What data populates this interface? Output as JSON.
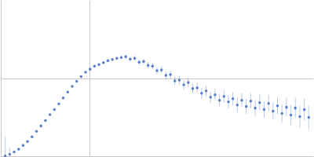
{
  "chart_data": {
    "type": "scatter",
    "color": "#3a66bd",
    "marker": "circle",
    "grid": true,
    "tick_labels": false,
    "xlim": [
      0,
      0.35
    ],
    "ylim": [
      0,
      2
    ],
    "xticks": [
      0.1
    ],
    "yticks": [
      1
    ],
    "x": [
      0.005,
      0.01,
      0.015,
      0.02,
      0.025,
      0.03,
      0.035,
      0.04,
      0.045,
      0.05,
      0.055,
      0.06,
      0.065,
      0.07,
      0.075,
      0.08,
      0.085,
      0.09,
      0.095,
      0.1,
      0.105,
      0.11,
      0.115,
      0.12,
      0.125,
      0.13,
      0.135,
      0.14,
      0.145,
      0.15,
      0.155,
      0.16,
      0.165,
      0.17,
      0.175,
      0.18,
      0.185,
      0.19,
      0.195,
      0.2,
      0.205,
      0.21,
      0.215,
      0.22,
      0.225,
      0.23,
      0.235,
      0.24,
      0.245,
      0.25,
      0.255,
      0.26,
      0.265,
      0.27,
      0.275,
      0.28,
      0.285,
      0.29,
      0.295,
      0.3,
      0.305,
      0.31,
      0.315,
      0.32,
      0.325,
      0.33,
      0.335,
      0.34,
      0.345
    ],
    "values": [
      0.005,
      0.025,
      0.055,
      0.09,
      0.14,
      0.19,
      0.25,
      0.32,
      0.39,
      0.46,
      0.535,
      0.6,
      0.675,
      0.75,
      0.825,
      0.9,
      0.965,
      1.025,
      1.08,
      1.12,
      1.16,
      1.18,
      1.205,
      1.23,
      1.245,
      1.26,
      1.27,
      1.28,
      1.25,
      1.26,
      1.21,
      1.22,
      1.17,
      1.16,
      1.1,
      1.11,
      1.04,
      1.05,
      0.97,
      0.98,
      0.92,
      0.95,
      0.87,
      0.88,
      0.81,
      0.84,
      0.76,
      0.79,
      0.72,
      0.77,
      0.7,
      0.74,
      0.66,
      0.72,
      0.64,
      0.71,
      0.62,
      0.69,
      0.6,
      0.68,
      0.58,
      0.65,
      0.55,
      0.63,
      0.53,
      0.62,
      0.51,
      0.6,
      0.5
    ],
    "errors": [
      0.25,
      0.08,
      0.01,
      0.01,
      0.01,
      0.01,
      0.01,
      0.01,
      0.01,
      0.01,
      0.01,
      0.01,
      0.01,
      0.01,
      0.01,
      0.01,
      0.01,
      0.01,
      0.01,
      0.01,
      0.015,
      0.015,
      0.015,
      0.015,
      0.02,
      0.02,
      0.02,
      0.03,
      0.03,
      0.03,
      0.035,
      0.035,
      0.04,
      0.04,
      0.045,
      0.045,
      0.05,
      0.05,
      0.055,
      0.055,
      0.06,
      0.06,
      0.065,
      0.065,
      0.07,
      0.07,
      0.075,
      0.075,
      0.08,
      0.08,
      0.085,
      0.085,
      0.09,
      0.09,
      0.095,
      0.095,
      0.1,
      0.1,
      0.105,
      0.105,
      0.11,
      0.11,
      0.12,
      0.12,
      0.13,
      0.13,
      0.14,
      0.14,
      0.15
    ]
  }
}
